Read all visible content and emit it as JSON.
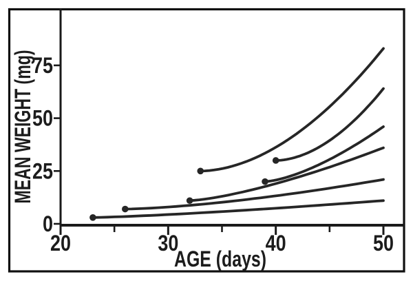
{
  "colors": {
    "background": "#ffffff",
    "ink": "#262626",
    "frame": "#101010",
    "text": "#1c1c1c"
  },
  "chart_data": {
    "type": "line",
    "title": "",
    "xlabel": "AGE (days)",
    "ylabel": "MEAN WEIGHT (mg)",
    "xlim": [
      20,
      52
    ],
    "ylim": [
      0,
      102
    ],
    "grid": false,
    "legend": "none",
    "x_ticks": {
      "major": [
        20,
        30,
        40,
        50
      ],
      "minor": [
        25,
        35,
        45
      ]
    },
    "y_ticks": {
      "major": [
        0,
        25,
        50,
        75
      ]
    },
    "marker_style": "filled dot at first point of each curve",
    "series": [
      {
        "start": {
          "age": 23,
          "weight": 3
        },
        "end": {
          "age": 50,
          "weight": 11
        }
      },
      {
        "start": {
          "age": 26,
          "weight": 7
        },
        "end": {
          "age": 50,
          "weight": 21
        }
      },
      {
        "start": {
          "age": 32,
          "weight": 11
        },
        "end": {
          "age": 50,
          "weight": 36
        }
      },
      {
        "start": {
          "age": 33,
          "weight": 25
        },
        "end": {
          "age": 50,
          "weight": 83
        }
      },
      {
        "start": {
          "age": 39,
          "weight": 20
        },
        "end": {
          "age": 50,
          "weight": 46
        }
      },
      {
        "start": {
          "age": 40,
          "weight": 30
        },
        "end": {
          "age": 50,
          "weight": 64
        }
      }
    ]
  }
}
